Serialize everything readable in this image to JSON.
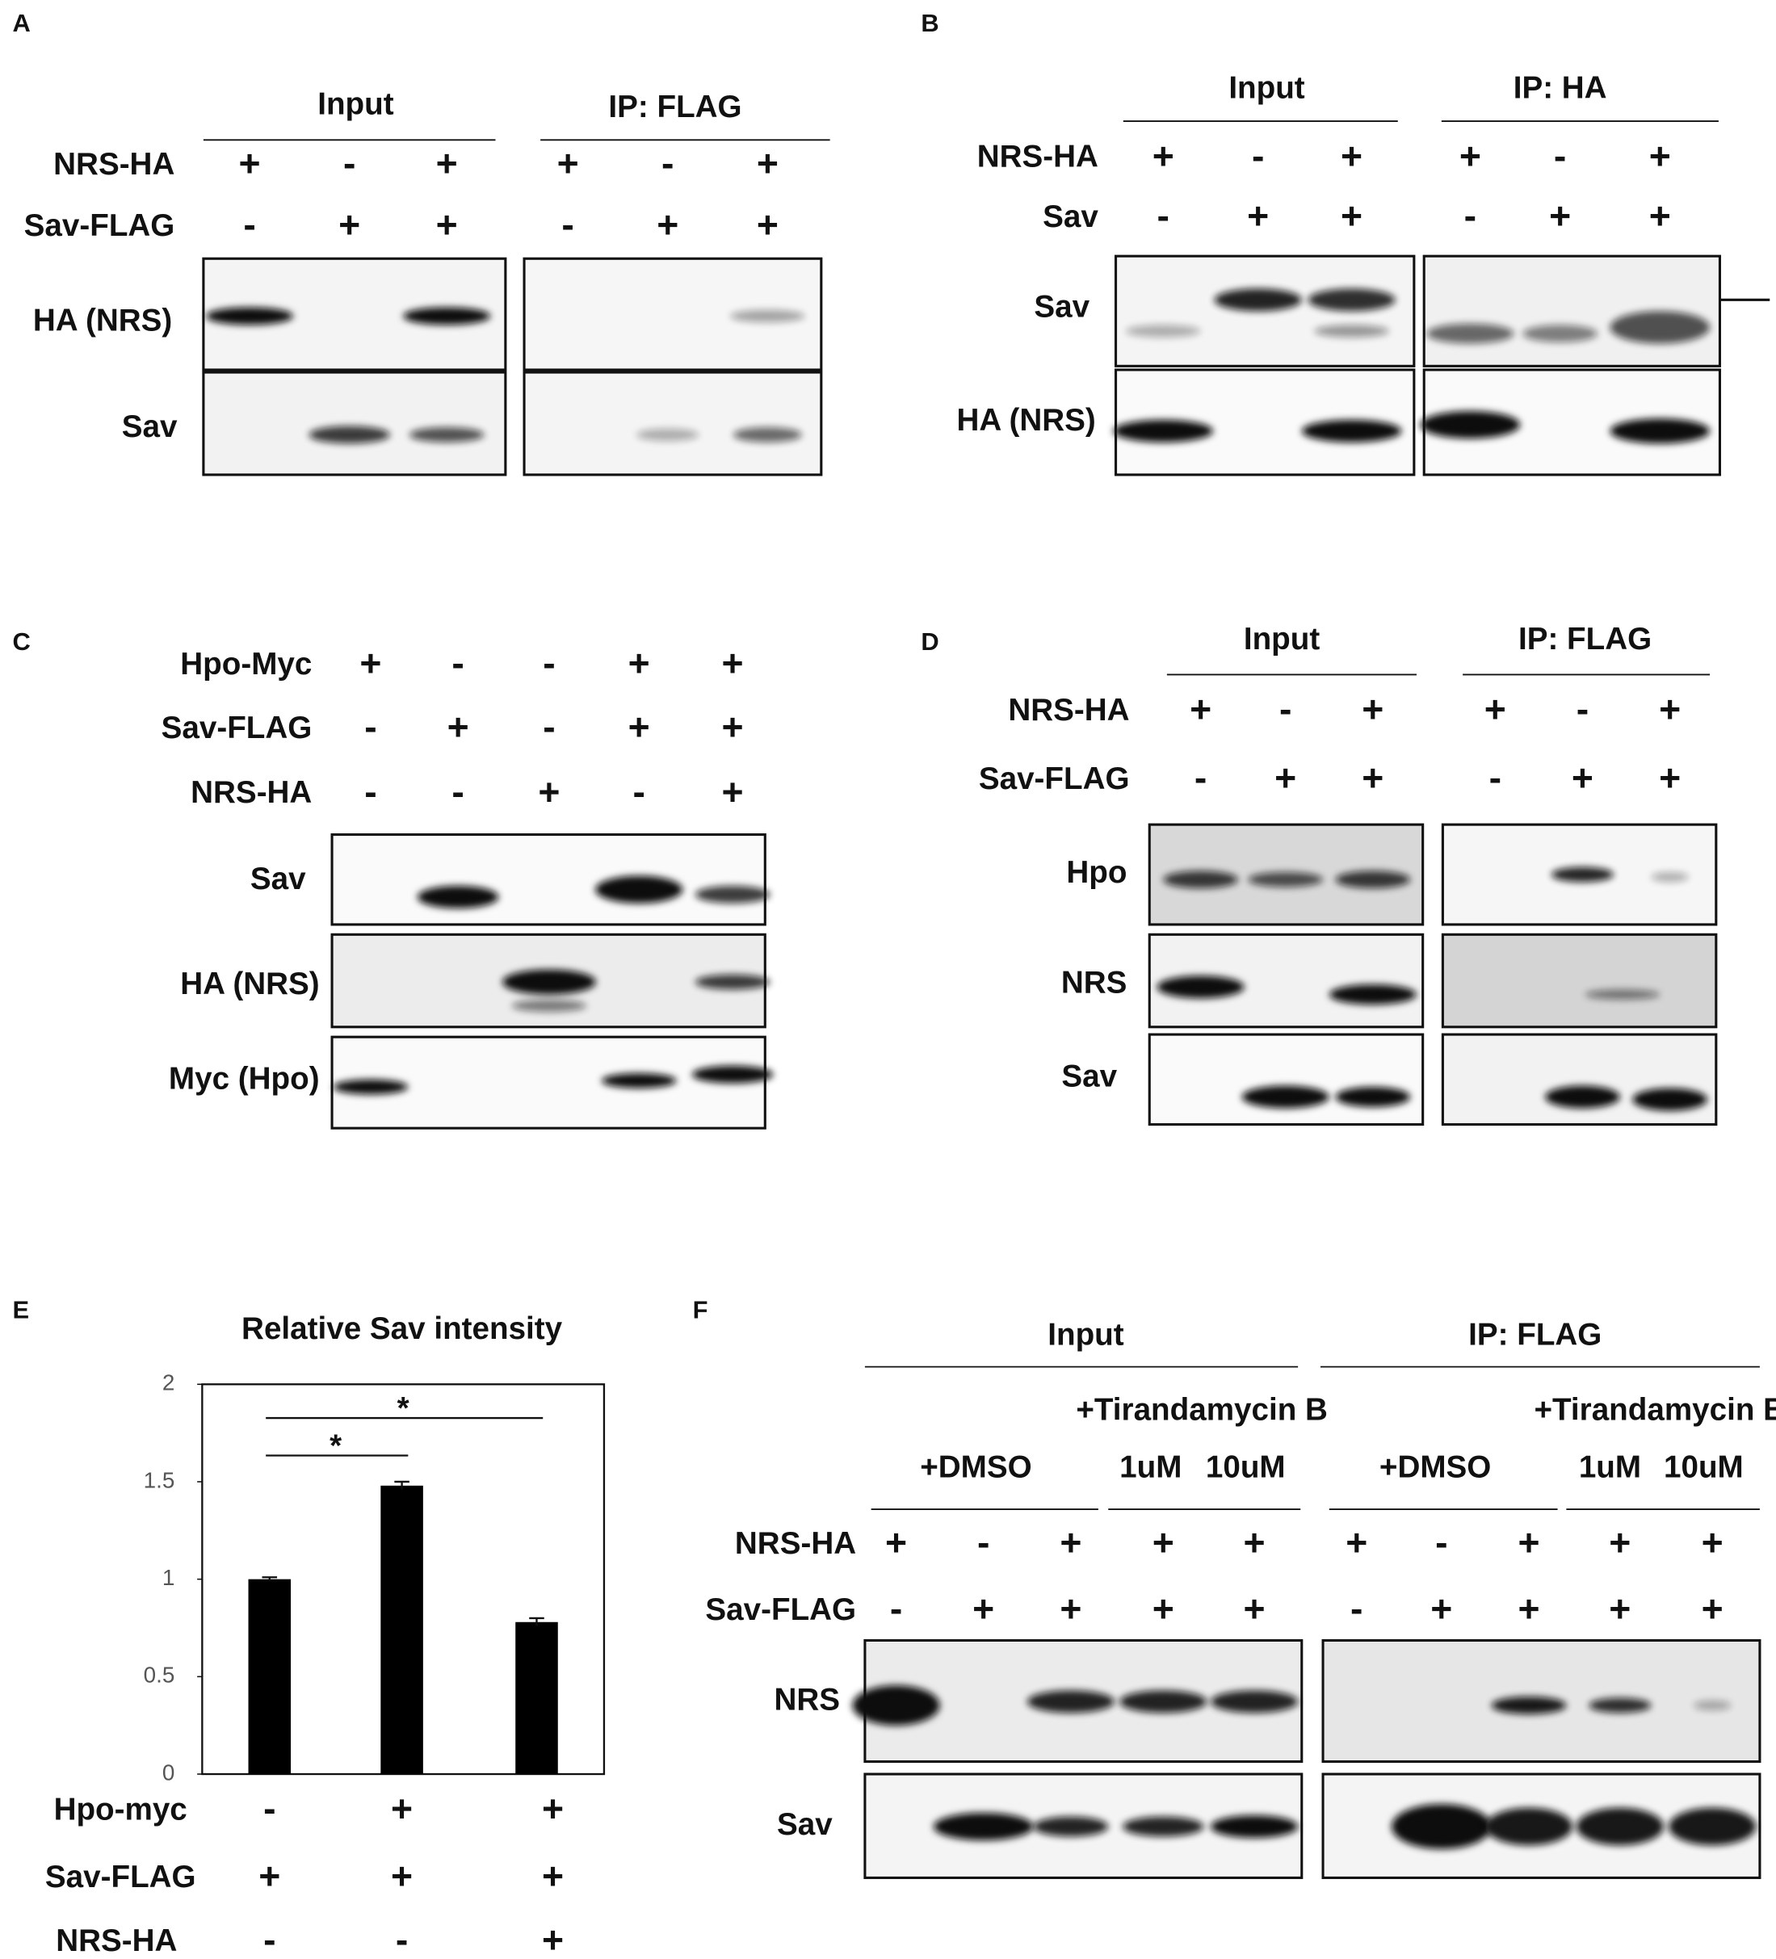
{
  "panels": {
    "A": {
      "label": "A",
      "groups": [
        "Input",
        "IP: FLAG"
      ],
      "rows": [
        {
          "name": "NRS-HA",
          "signs": [
            "+",
            "-",
            "+",
            "+",
            "-",
            "+"
          ]
        },
        {
          "name": "Sav-FLAG",
          "signs": [
            "-",
            "+",
            "+",
            "-",
            "+",
            "+"
          ]
        }
      ],
      "blots": [
        "HA (NRS)",
        "Sav"
      ]
    },
    "B": {
      "label": "B",
      "groups": [
        "Input",
        "IP: HA"
      ],
      "rows": [
        {
          "name": "NRS-HA",
          "signs": [
            "+",
            "-",
            "+",
            "+",
            "-",
            "+"
          ]
        },
        {
          "name": "Sav",
          "signs": [
            "-",
            "+",
            "+",
            "-",
            "+",
            "+"
          ]
        }
      ],
      "blots": [
        "Sav",
        "HA (NRS)"
      ]
    },
    "C": {
      "label": "C",
      "rows": [
        {
          "name": "Hpo-Myc",
          "signs": [
            "+",
            "-",
            "-",
            "+",
            "+"
          ]
        },
        {
          "name": "Sav-FLAG",
          "signs": [
            "-",
            "+",
            "-",
            "+",
            "+"
          ]
        },
        {
          "name": "NRS-HA",
          "signs": [
            "-",
            "-",
            "+",
            "-",
            "+"
          ]
        }
      ],
      "blots": [
        "Sav",
        "HA (NRS)",
        "Myc (Hpo)"
      ]
    },
    "D": {
      "label": "D",
      "groups": [
        "Input",
        "IP: FLAG"
      ],
      "rows": [
        {
          "name": "NRS-HA",
          "signs": [
            "+",
            "-",
            "+",
            "+",
            "-",
            "+"
          ]
        },
        {
          "name": "Sav-FLAG",
          "signs": [
            "-",
            "+",
            "+",
            "-",
            "+",
            "+"
          ]
        }
      ],
      "blots": [
        "Hpo",
        "NRS",
        "Sav"
      ]
    },
    "E": {
      "label": "E"
    },
    "F": {
      "label": "F",
      "groups": [
        {
          "name": "Input",
          "vehicle": "+DMSO",
          "drug": "+Tirandamycin B",
          "doses": [
            "1uM",
            "10uM"
          ]
        },
        {
          "name": "IP: FLAG",
          "vehicle": "+DMSO",
          "drug": "+Tirandamycin B",
          "doses": [
            "1uM",
            "10uM"
          ]
        }
      ],
      "rows": [
        {
          "name": "NRS-HA",
          "signs": [
            "+",
            "-",
            "+",
            "+",
            "+",
            "+",
            "-",
            "+",
            "+",
            "+"
          ]
        },
        {
          "name": "Sav-FLAG",
          "signs": [
            "-",
            "+",
            "+",
            "+",
            "+",
            "-",
            "+",
            "+",
            "+",
            "+"
          ]
        }
      ],
      "blots": [
        "NRS",
        "Sav"
      ]
    }
  },
  "chart_data": {
    "type": "bar",
    "title": "Relative Sav intensity",
    "values": [
      1,
      1.48,
      0.78
    ],
    "errors": [
      0.01,
      0.02,
      0.02
    ],
    "color": "#000000",
    "ylim": [
      0,
      2
    ],
    "yticks": [
      0,
      0.5,
      1,
      1.5,
      2
    ],
    "annotations": [
      {
        "text": "*",
        "from": 0,
        "to": 2
      },
      {
        "text": "*",
        "from": 0,
        "to": 1
      }
    ],
    "conditions": [
      {
        "name": "Hpo-myc",
        "signs": [
          "-",
          "+",
          "+"
        ]
      },
      {
        "name": "Sav-FLAG",
        "signs": [
          "+",
          "+",
          "+"
        ]
      },
      {
        "name": "NRS-HA",
        "signs": [
          "-",
          "-",
          "+"
        ]
      }
    ]
  }
}
